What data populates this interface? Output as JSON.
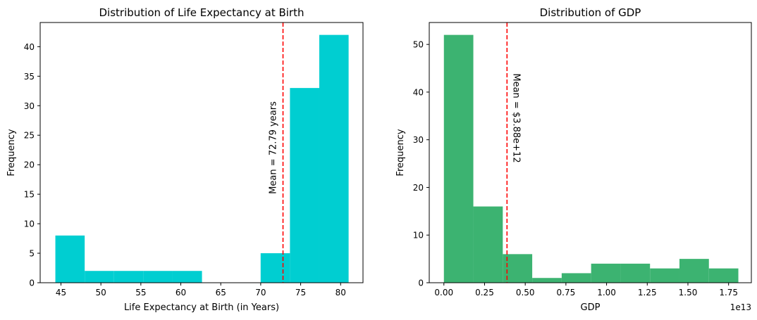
{
  "chart_data": [
    {
      "type": "bar",
      "title": "Distribution of Life Expectancy at Birth",
      "xlabel": "Life Expectancy at Birth (in Years)",
      "ylabel": "Frequency",
      "xlim": [
        42.4,
        82.8
      ],
      "ylim": [
        0,
        44.1
      ],
      "xticks": [
        45,
        50,
        55,
        60,
        65,
        70,
        75,
        80
      ],
      "yticks": [
        0,
        5,
        10,
        15,
        20,
        25,
        30,
        35,
        40
      ],
      "bin_edges": [
        44.3,
        47.97,
        51.64,
        55.31,
        58.98,
        62.65,
        66.32,
        69.99,
        73.66,
        77.33,
        81.0
      ],
      "values": [
        8,
        2,
        2,
        2,
        2,
        0,
        0,
        5,
        33,
        42
      ],
      "bar_color": "#00CED1",
      "mean": 72.79,
      "mean_label": "Mean = 72.79 years",
      "mean_line_color": "#FF0000",
      "grid": false
    },
    {
      "type": "bar",
      "title": "Distribution of GDP",
      "xlabel": "GDP",
      "ylabel": "Frequency",
      "offset_text": "1e13",
      "xlim": [
        -0.09,
        1.89
      ],
      "ylim": [
        0,
        54.6
      ],
      "xticks": [
        0.0,
        0.25,
        0.5,
        0.75,
        1.0,
        1.25,
        1.5,
        1.75
      ],
      "xtick_labels": [
        "0.00",
        "0.25",
        "0.50",
        "0.75",
        "1.00",
        "1.25",
        "1.50",
        "1.75"
      ],
      "yticks": [
        0,
        10,
        20,
        30,
        40,
        50
      ],
      "bin_edges": [
        0.0,
        0.181,
        0.362,
        0.543,
        0.724,
        0.905,
        1.086,
        1.267,
        1.448,
        1.629,
        1.81
      ],
      "values": [
        52,
        16,
        6,
        1,
        2,
        4,
        4,
        3,
        5,
        3
      ],
      "bar_color": "#3CB371",
      "mean": 0.388,
      "mean_label": "Mean = $3.88e+12",
      "mean_line_color": "#FF0000",
      "grid": false
    }
  ]
}
